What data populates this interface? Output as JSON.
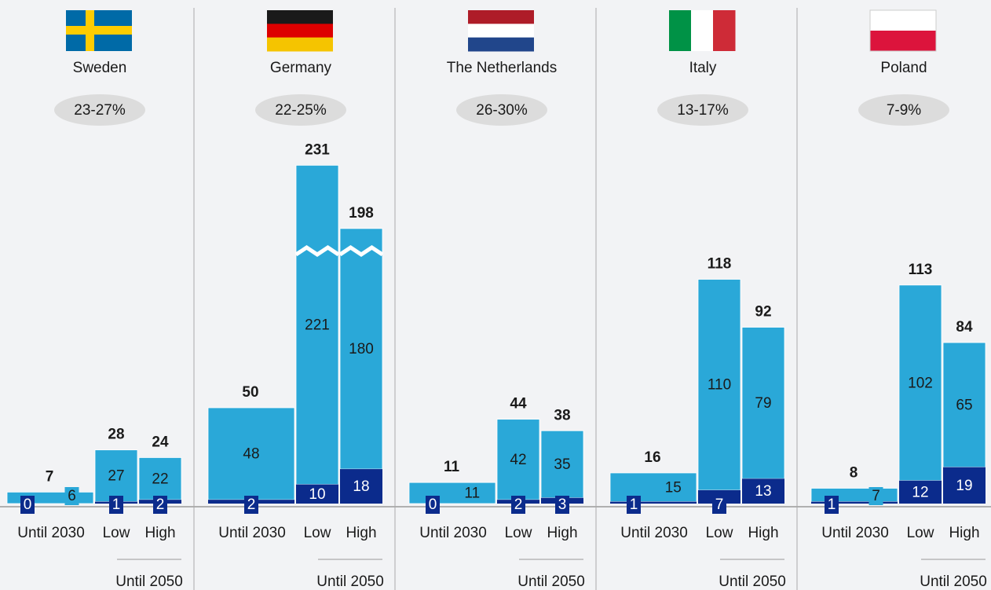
{
  "chart_data": [
    {
      "type": "bar",
      "title": "Sweden",
      "subtitle": "23-27%",
      "categories": [
        "Until 2030",
        "Low",
        "High"
      ],
      "group_label": "Until 2050",
      "series": [
        {
          "color": "#0b2b8c",
          "values": [
            0,
            1,
            2
          ]
        },
        {
          "color": "#2aa8d8",
          "values": [
            6,
            27,
            22
          ]
        }
      ],
      "totals": [
        7,
        28,
        24
      ]
    },
    {
      "type": "bar",
      "title": "Germany",
      "subtitle": "22-25%",
      "categories": [
        "Until 2030",
        "Low",
        "High"
      ],
      "group_label": "Until 2050",
      "series": [
        {
          "color": "#0b2b8c",
          "values": [
            2,
            10,
            18
          ]
        },
        {
          "color": "#2aa8d8",
          "values": [
            48,
            221,
            180
          ]
        }
      ],
      "totals": [
        50,
        231,
        198
      ]
    },
    {
      "type": "bar",
      "title": "The Netherlands",
      "subtitle": "26-30%",
      "categories": [
        "Until 2030",
        "Low",
        "High"
      ],
      "group_label": "Until 2050",
      "series": [
        {
          "color": "#0b2b8c",
          "values": [
            0,
            2,
            3
          ]
        },
        {
          "color": "#2aa8d8",
          "values": [
            11,
            42,
            35
          ]
        }
      ],
      "totals": [
        11,
        44,
        38
      ]
    },
    {
      "type": "bar",
      "title": "Italy",
      "subtitle": "13-17%",
      "categories": [
        "Until 2030",
        "Low",
        "High"
      ],
      "group_label": "Until 2050",
      "series": [
        {
          "color": "#0b2b8c",
          "values": [
            1,
            7,
            13
          ]
        },
        {
          "color": "#2aa8d8",
          "values": [
            15,
            110,
            79
          ]
        }
      ],
      "totals": [
        16,
        118,
        92
      ]
    },
    {
      "type": "bar",
      "title": "Poland",
      "subtitle": "7-9%",
      "categories": [
        "Until 2030",
        "Low",
        "High"
      ],
      "group_label": "Until 2050",
      "series": [
        {
          "color": "#0b2b8c",
          "values": [
            1,
            12,
            19
          ]
        },
        {
          "color": "#2aa8d8",
          "values": [
            7,
            102,
            65
          ]
        }
      ],
      "totals": [
        8,
        113,
        84
      ]
    }
  ]
}
